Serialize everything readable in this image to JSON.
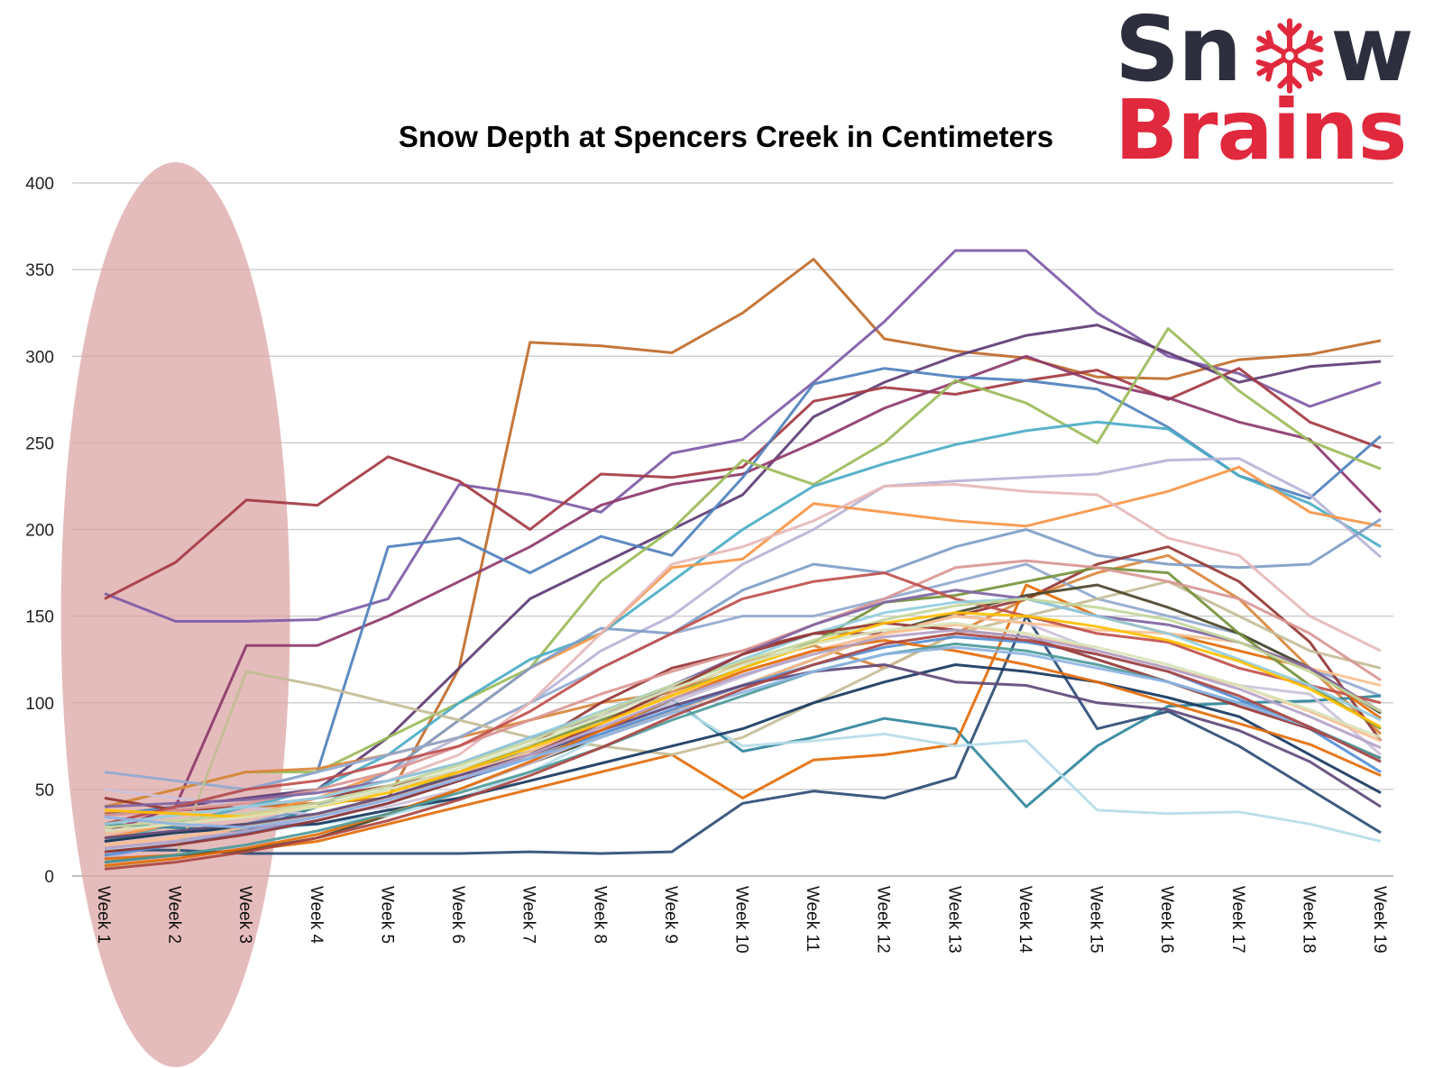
{
  "logo": {
    "part1": "Sn",
    "part2": "w",
    "line2": "Brains",
    "glyph": "snowflake-icon"
  },
  "chart_data": {
    "type": "line",
    "title": "Snow Depth at Spencers Creek in Centimeters",
    "xlabel": "",
    "ylabel": "",
    "categories": [
      "Week 1",
      "Week 2",
      "Week 3",
      "Week 4",
      "Week 5",
      "Week 6",
      "Week 7",
      "Week 8",
      "Week 9",
      "Week 10",
      "Week 11",
      "Week 12",
      "Week 13",
      "Week 14",
      "Week 15",
      "Week 16",
      "Week 17",
      "Week 18",
      "Week 19"
    ],
    "ylim": [
      0,
      400
    ],
    "yticks": [
      0,
      50,
      100,
      150,
      200,
      250,
      300,
      350,
      400
    ],
    "grid": true,
    "legend": "none",
    "highlight": {
      "from_category": "Week 1",
      "to_category": "Week 3",
      "color": "#dca5a5"
    },
    "series": [
      {
        "color": "#bf6b2a",
        "values": [
          36,
          38,
          40,
          42,
          45,
          120,
          308,
          306,
          302,
          325,
          356,
          310,
          303,
          299,
          288,
          287,
          298,
          301,
          309
        ]
      },
      {
        "color": "#7d5ba6",
        "values": [
          163,
          147,
          147,
          148,
          160,
          226,
          220,
          210,
          244,
          252,
          285,
          320,
          361,
          361,
          325,
          300,
          290,
          271,
          285
        ]
      },
      {
        "color": "#5e3c74",
        "values": [
          30,
          40,
          45,
          50,
          80,
          120,
          160,
          180,
          200,
          220,
          265,
          285,
          300,
          312,
          318,
          302,
          285,
          294,
          297
        ]
      },
      {
        "color": "#a33a43",
        "values": [
          160,
          181,
          217,
          214,
          242,
          228,
          200,
          232,
          230,
          236,
          274,
          282,
          278,
          286,
          292,
          275,
          293,
          262,
          247
        ]
      },
      {
        "color": "#8d3a6b",
        "values": [
          25,
          40,
          133,
          133,
          150,
          170,
          190,
          214,
          226,
          232,
          250,
          270,
          285,
          300,
          285,
          276,
          262,
          252,
          210
        ]
      },
      {
        "color": "#4f81bd",
        "values": [
          35,
          40,
          50,
          60,
          190,
          195,
          175,
          196,
          185,
          230,
          284,
          293,
          288,
          286,
          281,
          259,
          231,
          218,
          254
        ]
      },
      {
        "color": "#9bbb59",
        "values": [
          40,
          50,
          60,
          60,
          80,
          100,
          120,
          170,
          200,
          240,
          226,
          250,
          286,
          273,
          250,
          316,
          280,
          251,
          235
        ]
      },
      {
        "color": "#4bacc6",
        "values": [
          20,
          30,
          40,
          50,
          70,
          100,
          125,
          140,
          170,
          200,
          225,
          238,
          249,
          257,
          262,
          258,
          231,
          215,
          190
        ]
      },
      {
        "color": "#b9b3d6",
        "values": [
          10,
          20,
          30,
          40,
          60,
          80,
          100,
          130,
          150,
          180,
          200,
          225,
          228,
          230,
          232,
          240,
          241,
          220,
          184
        ]
      },
      {
        "color": "#f79646",
        "values": [
          22,
          30,
          35,
          45,
          60,
          90,
          120,
          140,
          178,
          183,
          215,
          210,
          205,
          202,
          212,
          222,
          236,
          210,
          202
        ]
      },
      {
        "color": "#2c4d75",
        "values": [
          15,
          15,
          13,
          13,
          13,
          13,
          14,
          13,
          14,
          42,
          49,
          45,
          57,
          150,
          85,
          95,
          75,
          50,
          25
        ]
      },
      {
        "color": "#d9853b",
        "values": [
          40,
          50,
          60,
          62,
          70,
          80,
          90,
          100,
          106,
          123,
          133,
          120,
          140,
          160,
          175,
          185,
          160,
          120,
          82
        ]
      },
      {
        "color": "#7f9dc7",
        "values": [
          20,
          25,
          30,
          40,
          60,
          90,
          120,
          143,
          140,
          165,
          180,
          175,
          190,
          200,
          185,
          180,
          178,
          180,
          206
        ]
      },
      {
        "color": "#92a9cf",
        "values": [
          60,
          55,
          50,
          60,
          70,
          80,
          100,
          120,
          140,
          150,
          150,
          160,
          170,
          180,
          160,
          150,
          140,
          120,
          104
        ]
      },
      {
        "color": "#943634",
        "values": [
          45,
          38,
          40,
          45,
          52,
          60,
          75,
          100,
          120,
          130,
          140,
          140,
          150,
          160,
          180,
          190,
          170,
          135,
          78
        ]
      },
      {
        "color": "#31859c",
        "values": [
          30,
          28,
          26,
          40,
          50,
          60,
          72,
          80,
          102,
          72,
          80,
          91,
          85,
          40,
          75,
          98,
          100,
          101,
          104
        ]
      },
      {
        "color": "#e36c09",
        "values": [
          10,
          12,
          15,
          20,
          30,
          40,
          50,
          60,
          70,
          45,
          67,
          70,
          76,
          168,
          150,
          140,
          130,
          120,
          91
        ]
      },
      {
        "color": "#c4bd97",
        "values": [
          5,
          10,
          118,
          110,
          100,
          90,
          80,
          75,
          70,
          80,
          100,
          120,
          140,
          150,
          160,
          170,
          150,
          130,
          120
        ]
      },
      {
        "color": "#4a452a",
        "values": [
          8,
          12,
          15,
          22,
          35,
          50,
          65,
          80,
          95,
          110,
          125,
          140,
          152,
          162,
          168,
          155,
          140,
          120,
          94
        ]
      },
      {
        "color": "#b7dde8",
        "values": [
          15,
          20,
          25,
          30,
          35,
          45,
          60,
          80,
          100,
          75,
          78,
          82,
          75,
          78,
          38,
          36,
          37,
          30,
          20
        ]
      },
      {
        "color": "#e6b9b8",
        "values": [
          30,
          35,
          40,
          45,
          55,
          70,
          100,
          140,
          180,
          190,
          205,
          225,
          226,
          222,
          220,
          195,
          185,
          150,
          130
        ]
      },
      {
        "color": "#76923c",
        "values": [
          20,
          25,
          30,
          35,
          45,
          60,
          75,
          90,
          105,
          120,
          135,
          158,
          162,
          170,
          178,
          175,
          140,
          110,
          85
        ]
      },
      {
        "color": "#ccc1da",
        "values": [
          50,
          45,
          40,
          35,
          40,
          50,
          65,
          82,
          100,
          115,
          130,
          140,
          150,
          146,
          130,
          120,
          110,
          105,
          70
        ]
      },
      {
        "color": "#fac090",
        "values": [
          25,
          30,
          35,
          40,
          50,
          60,
          70,
          80,
          95,
          110,
          125,
          140,
          150,
          146,
          142,
          140,
          135,
          120,
          110
        ]
      },
      {
        "color": "#17375e",
        "values": [
          20,
          25,
          28,
          30,
          38,
          45,
          55,
          65,
          75,
          85,
          100,
          112,
          122,
          118,
          112,
          103,
          92,
          70,
          48
        ]
      },
      {
        "color": "#d99694",
        "values": [
          35,
          38,
          42,
          50,
          60,
          75,
          90,
          105,
          118,
          130,
          145,
          160,
          178,
          182,
          178,
          170,
          160,
          140,
          113
        ]
      },
      {
        "color": "#8064a2",
        "values": [
          40,
          42,
          44,
          48,
          55,
          65,
          80,
          92,
          110,
          128,
          145,
          158,
          165,
          160,
          150,
          145,
          135,
          120,
          95
        ]
      },
      {
        "color": "#c0504d",
        "values": [
          30,
          40,
          50,
          55,
          65,
          75,
          95,
          120,
          140,
          160,
          170,
          175,
          160,
          150,
          140,
          135,
          120,
          110,
          100
        ]
      },
      {
        "color": "#93cddd",
        "values": [
          30,
          35,
          40,
          45,
          55,
          65,
          80,
          95,
          110,
          125,
          140,
          152,
          158,
          160,
          150,
          140,
          125,
          110,
          90
        ]
      },
      {
        "color": "#fabf8f",
        "values": [
          18,
          22,
          28,
          35,
          45,
          58,
          72,
          88,
          105,
          118,
          130,
          140,
          145,
          140,
          130,
          120,
          110,
          95,
          78
        ]
      },
      {
        "color": "#558ed5",
        "values": [
          12,
          18,
          25,
          32,
          42,
          55,
          68,
          82,
          96,
          110,
          122,
          132,
          138,
          135,
          128,
          118,
          102,
          85,
          60
        ]
      },
      {
        "color": "#c3d69b",
        "values": [
          28,
          32,
          36,
          42,
          52,
          64,
          78,
          94,
          110,
          124,
          136,
          148,
          156,
          160,
          155,
          148,
          135,
          118,
          95
        ]
      },
      {
        "color": "#60497a",
        "values": [
          22,
          26,
          30,
          36,
          46,
          58,
          70,
          84,
          98,
          110,
          118,
          122,
          112,
          110,
          100,
          96,
          84,
          66,
          40
        ]
      },
      {
        "color": "#953735",
        "values": [
          14,
          18,
          24,
          32,
          42,
          55,
          70,
          88,
          108,
          128,
          140,
          146,
          142,
          138,
          125,
          112,
          98,
          85,
          68
        ]
      },
      {
        "color": "#e46d0a",
        "values": [
          6,
          10,
          16,
          24,
          36,
          50,
          66,
          84,
          102,
          118,
          130,
          136,
          130,
          122,
          112,
          100,
          88,
          76,
          58
        ]
      },
      {
        "color": "#ffc000",
        "values": [
          38,
          36,
          34,
          40,
          48,
          60,
          74,
          88,
          104,
          120,
          134,
          146,
          152,
          150,
          144,
          136,
          124,
          108,
          86
        ]
      },
      {
        "color": "#4e9a9a",
        "values": [
          8,
          12,
          18,
          26,
          36,
          48,
          60,
          74,
          90,
          104,
          118,
          128,
          134,
          130,
          122,
          112,
          100,
          86,
          68
        ]
      },
      {
        "color": "#d8e4bc",
        "values": [
          26,
          30,
          34,
          40,
          50,
          62,
          76,
          92,
          108,
          122,
          134,
          142,
          146,
          140,
          132,
          122,
          110,
          96,
          80
        ]
      },
      {
        "color": "#b3a2c7",
        "values": [
          16,
          20,
          26,
          34,
          44,
          56,
          70,
          86,
          102,
          116,
          128,
          138,
          142,
          138,
          130,
          120,
          108,
          92,
          74
        ]
      },
      {
        "color": "#8eb4e3",
        "values": [
          34,
          30,
          28,
          34,
          44,
          56,
          68,
          80,
          94,
          106,
          118,
          128,
          132,
          128,
          120,
          112,
          100,
          86,
          66
        ]
      },
      {
        "color": "#aa4643",
        "values": [
          4,
          8,
          14,
          22,
          32,
          44,
          58,
          74,
          92,
          108,
          122,
          134,
          140,
          136,
          128,
          118,
          104,
          86,
          66
        ]
      }
    ]
  }
}
